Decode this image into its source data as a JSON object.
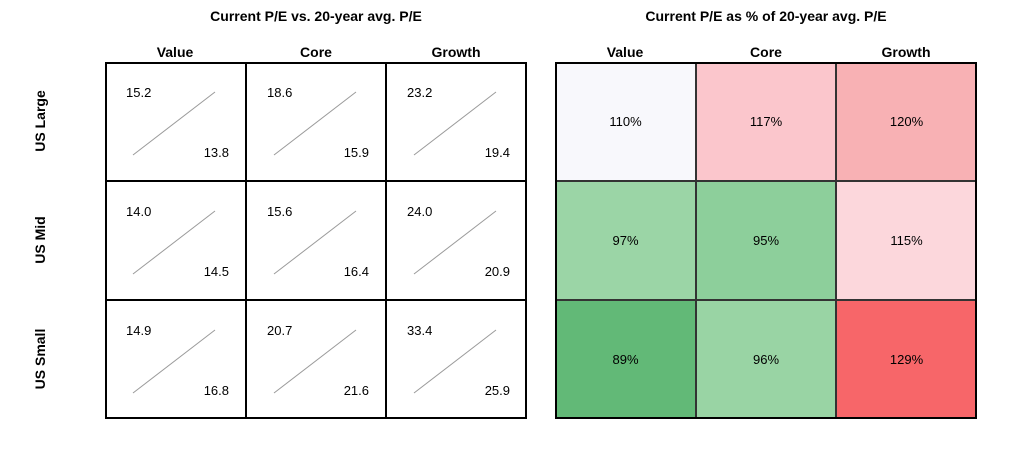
{
  "left_panel": {
    "title": "Current P/E vs. 20-year avg. P/E"
  },
  "right_panel": {
    "title": "Current P/E as % of 20-year avg. P/E"
  },
  "columns": [
    "Value",
    "Core",
    "Growth"
  ],
  "rows": [
    "US Large",
    "US Mid",
    "US Small"
  ],
  "chart_data": [
    {
      "type": "table",
      "title": "Current P/E vs. 20-year avg. P/E",
      "rows": [
        "US Large",
        "US Mid",
        "US Small"
      ],
      "columns": [
        "Value",
        "Core",
        "Growth"
      ],
      "current_pe": [
        [
          "15.2",
          "18.6",
          "23.2"
        ],
        [
          "14.0",
          "15.6",
          "24.0"
        ],
        [
          "14.9",
          "20.7",
          "33.4"
        ]
      ],
      "avg_20y_pe": [
        [
          "13.8",
          "15.9",
          "19.4"
        ],
        [
          "14.5",
          "16.4",
          "20.9"
        ],
        [
          "16.8",
          "21.6",
          "25.9"
        ]
      ]
    },
    {
      "type": "heatmap",
      "title": "Current P/E as % of 20-year avg. P/E",
      "rows": [
        "US Large",
        "US Mid",
        "US Small"
      ],
      "columns": [
        "Value",
        "Core",
        "Growth"
      ],
      "labels": [
        [
          "110%",
          "117%",
          "120%"
        ],
        [
          "97%",
          "95%",
          "115%"
        ],
        [
          "89%",
          "96%",
          "129%"
        ]
      ],
      "values": [
        [
          110,
          117,
          120
        ],
        [
          97,
          95,
          115
        ],
        [
          89,
          96,
          129
        ]
      ],
      "colors": [
        [
          "#f8f8fc",
          "#fbc6cc",
          "#f8b1b4"
        ],
        [
          "#9bd5a6",
          "#8dcf9b",
          "#fcd7dc"
        ],
        [
          "#62b977",
          "#99d4a4",
          "#f76669"
        ]
      ]
    }
  ]
}
